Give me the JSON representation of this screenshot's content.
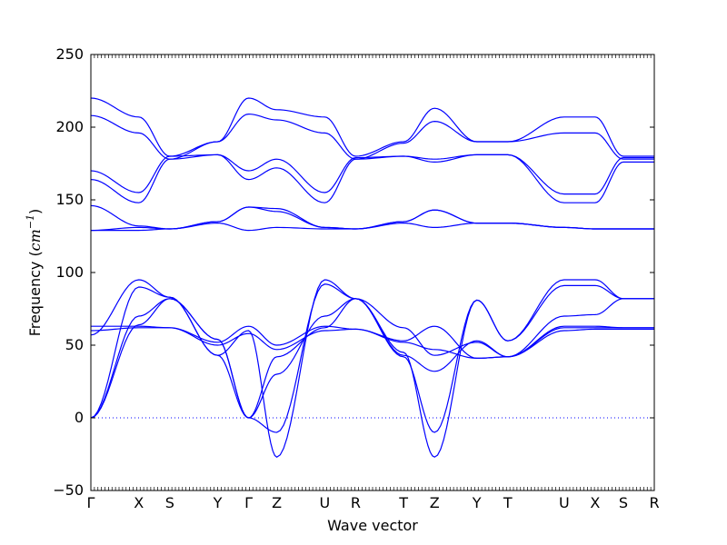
{
  "chart_data": {
    "type": "line",
    "title": "",
    "xlabel": "Wave vector",
    "ylabel": "Frequency (cm⁻¹)",
    "ylabel_plain": "Frequency (",
    "ylabel_unit": "cm",
    "ylabel_exp": "−1",
    "ylabel_close": ")",
    "ylim": [
      -50,
      250
    ],
    "yticks": [
      -50,
      0,
      50,
      100,
      150,
      200,
      250
    ],
    "kpoint_labels": [
      "Γ",
      "X",
      "S",
      "Y",
      "Γ",
      "Z",
      "U",
      "R",
      "T",
      "Z",
      "Y",
      "T",
      "U",
      "X",
      "S",
      "R"
    ],
    "kpoint_positions": [
      0,
      0.085,
      0.14,
      0.225,
      0.28,
      0.33,
      0.415,
      0.47,
      0.555,
      0.61,
      0.685,
      0.74,
      0.84,
      0.895,
      0.945,
      1.0
    ],
    "zero_line": 0,
    "line_color": "#0000ff",
    "x": [
      0,
      0.085,
      0.14,
      0.225,
      0.28,
      0.33,
      0.415,
      0.47,
      0.555,
      0.61,
      0.685,
      0.74,
      0.84,
      0.895,
      0.945,
      1.0
    ],
    "series": [
      {
        "values": [
          0,
          64,
          82,
          54,
          0,
          42,
          62,
          82,
          62,
          43,
          52,
          42,
          62,
          62,
          62,
          62
        ]
      },
      {
        "values": [
          0,
          70,
          82,
          54,
          0,
          30,
          70,
          82,
          43,
          32,
          53,
          42,
          70,
          71,
          82,
          82
        ]
      },
      {
        "values": [
          0,
          90,
          83,
          43,
          0,
          -10,
          92,
          82,
          42,
          -10,
          81,
          53,
          91,
          91,
          82,
          82
        ]
      },
      {
        "values": [
          57,
          95,
          83,
          43,
          60,
          -27,
          95,
          82,
          45,
          -27,
          81,
          53,
          95,
          95,
          82,
          82
        ]
      },
      {
        "values": [
          60,
          62,
          62,
          50,
          58,
          47,
          60,
          61,
          52,
          47,
          41,
          42,
          60,
          61,
          61,
          61
        ]
      },
      {
        "values": [
          63,
          63,
          62,
          52,
          63,
          50,
          63,
          61,
          53,
          63,
          41,
          42,
          63,
          63,
          62,
          62
        ]
      },
      {
        "values": [
          129,
          129,
          130,
          134,
          129,
          131,
          130,
          130,
          134,
          131,
          134,
          134,
          131,
          130,
          130,
          130
        ]
      },
      {
        "values": [
          129,
          131,
          130,
          135,
          145,
          142,
          131,
          130,
          135,
          143,
          134,
          134,
          131,
          130,
          130,
          130
        ]
      },
      {
        "values": [
          146,
          132,
          130,
          135,
          145,
          144,
          131,
          130,
          135,
          143,
          134,
          134,
          131,
          130,
          130,
          130
        ]
      },
      {
        "values": [
          164,
          148,
          178,
          181,
          164,
          172,
          148,
          178,
          180,
          176,
          181,
          181,
          148,
          148,
          176,
          176
        ]
      },
      {
        "values": [
          170,
          155,
          180,
          181,
          170,
          178,
          155,
          179,
          180,
          178,
          181,
          181,
          154,
          154,
          179,
          179
        ]
      },
      {
        "values": [
          208,
          196,
          178,
          190,
          209,
          205,
          196,
          178,
          189,
          204,
          190,
          190,
          196,
          196,
          178,
          178
        ]
      },
      {
        "values": [
          220,
          207,
          180,
          190,
          220,
          212,
          207,
          180,
          190,
          213,
          190,
          190,
          207,
          207,
          180,
          180
        ]
      }
    ],
    "grid": false,
    "legend": "none"
  }
}
